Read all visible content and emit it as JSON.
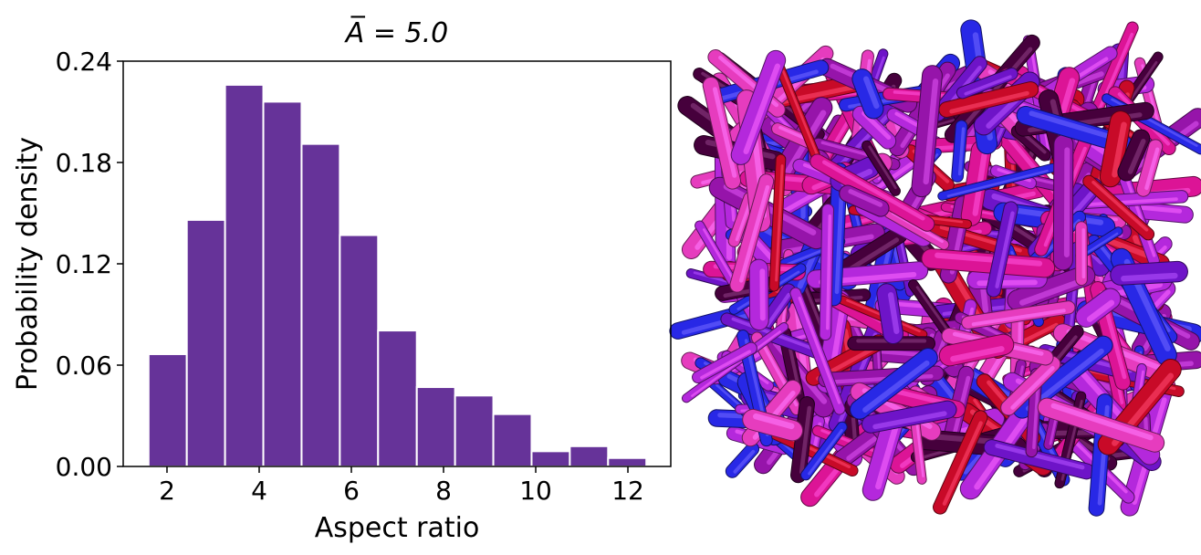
{
  "chart_data": {
    "type": "histogram",
    "title": "A̅ = 5.0",
    "x_label": "Aspect ratio",
    "y_label": "Probability density",
    "bins": [
      1.6,
      2.43,
      3.26,
      4.09,
      4.92,
      5.75,
      6.58,
      7.42,
      8.25,
      9.08,
      9.91,
      10.74,
      11.57,
      12.4
    ],
    "values": [
      0.0665,
      0.146,
      0.226,
      0.216,
      0.191,
      0.137,
      0.0805,
      0.047,
      0.042,
      0.031,
      0.009,
      0.012,
      0.005
    ],
    "color": "#663399",
    "xlim": [
      1.05,
      12.93
    ],
    "ylim": [
      0,
      0.24
    ],
    "xticks": [
      2,
      4,
      6,
      8,
      10,
      12
    ],
    "yticks": [
      {
        "value": 0,
        "label": "0.00"
      },
      {
        "value": 0.06,
        "label": "0.06"
      },
      {
        "value": 0.12,
        "label": "0.12"
      },
      {
        "value": 0.18,
        "label": "0.18"
      },
      {
        "value": 0.24,
        "label": "0.24"
      }
    ]
  }
}
